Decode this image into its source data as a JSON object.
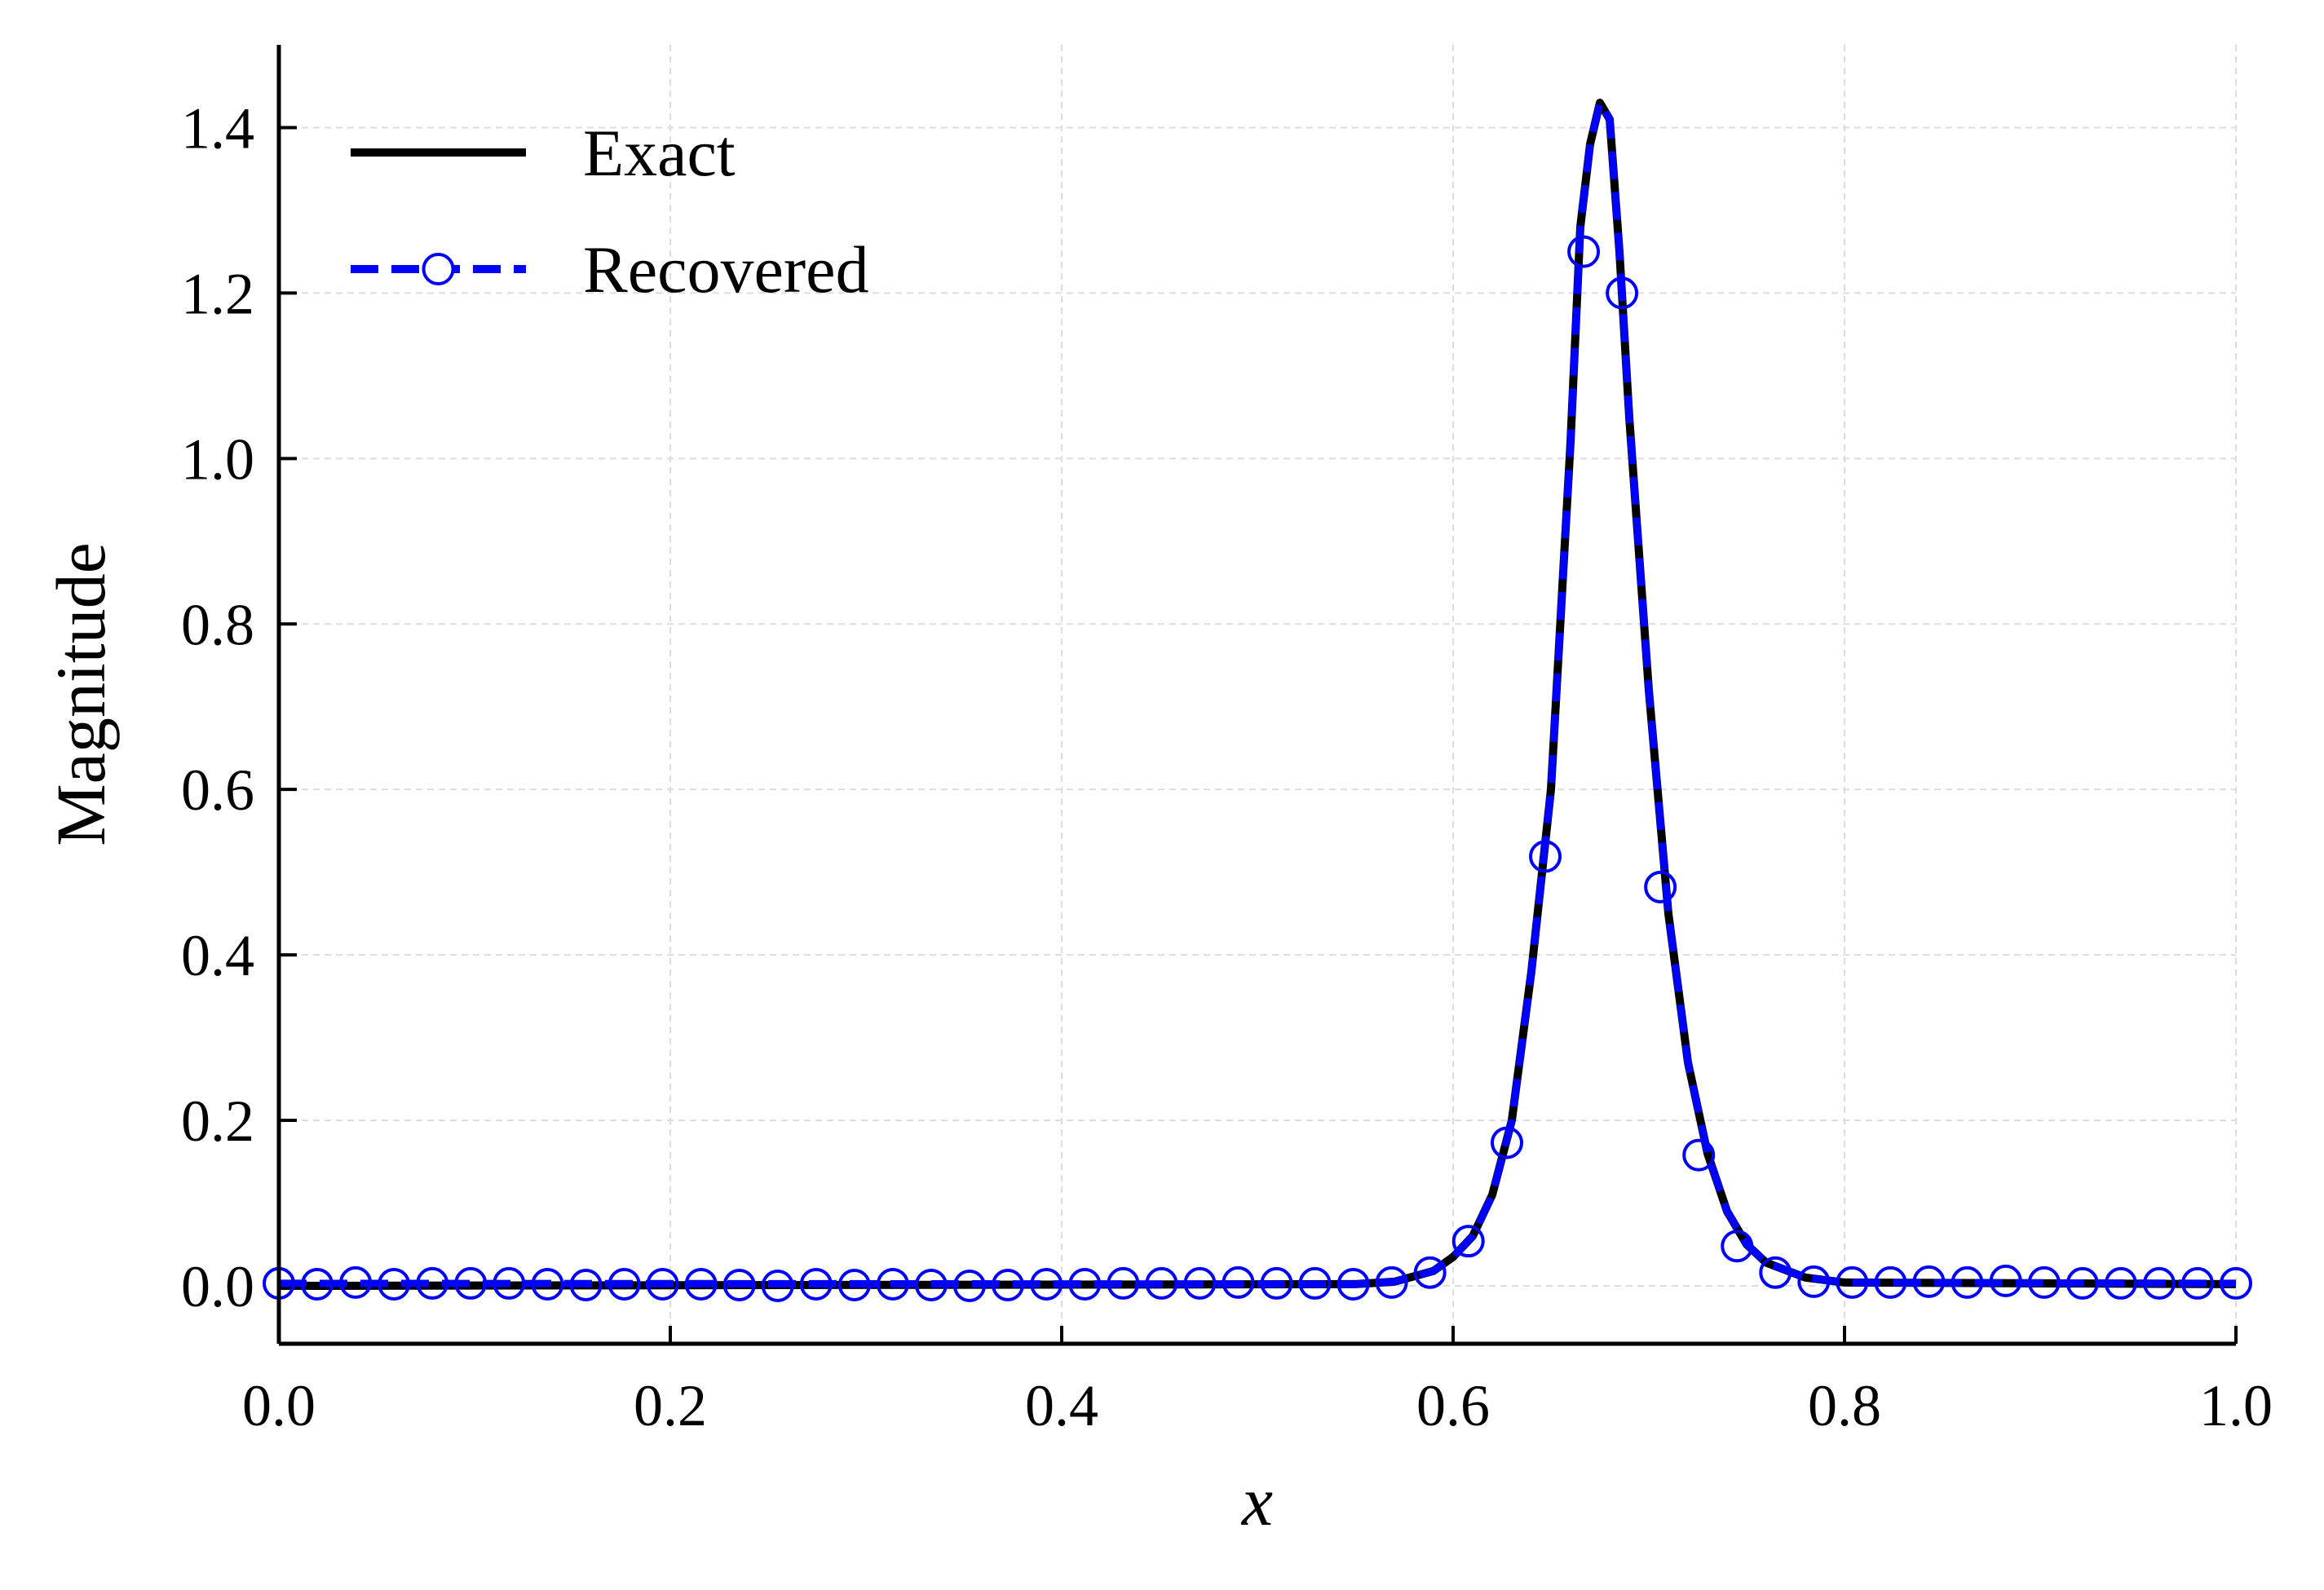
{
  "chart_data": {
    "type": "line",
    "title": "",
    "xlabel": "x",
    "ylabel": "Magnitude",
    "xlim": [
      0.0,
      1.0
    ],
    "ylim": [
      -0.07,
      1.5
    ],
    "xticks": [
      0.0,
      0.2,
      0.4,
      0.6,
      0.8,
      1.0
    ],
    "xtick_labels": [
      "0.0",
      "0.2",
      "0.4",
      "0.6",
      "0.8",
      "1.0"
    ],
    "yticks": [
      0.0,
      0.2,
      0.4,
      0.6,
      0.8,
      1.0,
      1.2,
      1.4
    ],
    "ytick_labels": [
      "0.0",
      "0.2",
      "0.4",
      "0.6",
      "0.8",
      "1.0",
      "1.2",
      "1.4"
    ],
    "grid": true,
    "legend_position": "top-left",
    "colors": {
      "exact": "#000000",
      "recovered": "#0000ff",
      "grid": "#dddddd"
    },
    "series": [
      {
        "name": "Exact",
        "style": "solid",
        "color": "#000000",
        "x": [
          0.0,
          0.55,
          0.57,
          0.59,
          0.6,
          0.61,
          0.62,
          0.63,
          0.64,
          0.65,
          0.66,
          0.665,
          0.67,
          0.675,
          0.68,
          0.685,
          0.69,
          0.7,
          0.71,
          0.72,
          0.73,
          0.74,
          0.75,
          0.76,
          0.78,
          0.8,
          1.0
        ],
        "y": [
          0.0,
          0.002,
          0.005,
          0.018,
          0.035,
          0.06,
          0.11,
          0.2,
          0.38,
          0.6,
          1.02,
          1.28,
          1.38,
          1.43,
          1.41,
          1.25,
          1.05,
          0.72,
          0.45,
          0.27,
          0.16,
          0.09,
          0.05,
          0.028,
          0.01,
          0.004,
          0.002
        ]
      },
      {
        "name": "Recovered",
        "style": "dashed-circle-markers",
        "color": "#0000ff",
        "x": [
          0.0,
          0.55,
          0.57,
          0.59,
          0.6,
          0.61,
          0.62,
          0.63,
          0.64,
          0.65,
          0.66,
          0.665,
          0.67,
          0.675,
          0.68,
          0.685,
          0.69,
          0.7,
          0.71,
          0.72,
          0.73,
          0.74,
          0.75,
          0.76,
          0.78,
          0.8,
          1.0
        ],
        "y": [
          0.003,
          0.002,
          0.005,
          0.018,
          0.035,
          0.06,
          0.11,
          0.2,
          0.38,
          0.6,
          1.02,
          1.28,
          1.38,
          1.43,
          1.41,
          1.25,
          1.05,
          0.72,
          0.45,
          0.27,
          0.16,
          0.09,
          0.05,
          0.028,
          0.01,
          0.004,
          0.003
        ],
        "markers_x": [
          0.0,
          0.0196,
          0.0392,
          0.0588,
          0.0784,
          0.098,
          0.1176,
          0.1373,
          0.1569,
          0.1765,
          0.1961,
          0.2157,
          0.2353,
          0.2549,
          0.2745,
          0.2941,
          0.3137,
          0.3333,
          0.3529,
          0.3725,
          0.3922,
          0.4118,
          0.4314,
          0.451,
          0.4706,
          0.4902,
          0.5098,
          0.5294,
          0.549,
          0.5686,
          0.5882,
          0.6078,
          0.6275,
          0.6471,
          0.6667,
          0.6863,
          0.7059,
          0.7255,
          0.7451,
          0.7647,
          0.7843,
          0.8039,
          0.8235,
          0.8431,
          0.8627,
          0.8824,
          0.902,
          0.9216,
          0.9412,
          0.9608,
          0.9804,
          1.0
        ],
        "markers_y": [
          0.003,
          0.002,
          0.004,
          0.002,
          0.003,
          0.003,
          0.003,
          0.002,
          0.001,
          0.002,
          0.002,
          0.002,
          0.001,
          0.0,
          0.002,
          0.001,
          0.002,
          0.001,
          0.0,
          0.001,
          0.002,
          0.002,
          0.003,
          0.003,
          0.003,
          0.004,
          0.003,
          0.003,
          0.002,
          0.004,
          0.016,
          0.054,
          0.173,
          0.519,
          1.25,
          1.2,
          0.482,
          0.158,
          0.048,
          0.016,
          0.005,
          0.004,
          0.004,
          0.005,
          0.004,
          0.006,
          0.004,
          0.003,
          0.003,
          0.003,
          0.003,
          0.003
        ]
      }
    ]
  }
}
